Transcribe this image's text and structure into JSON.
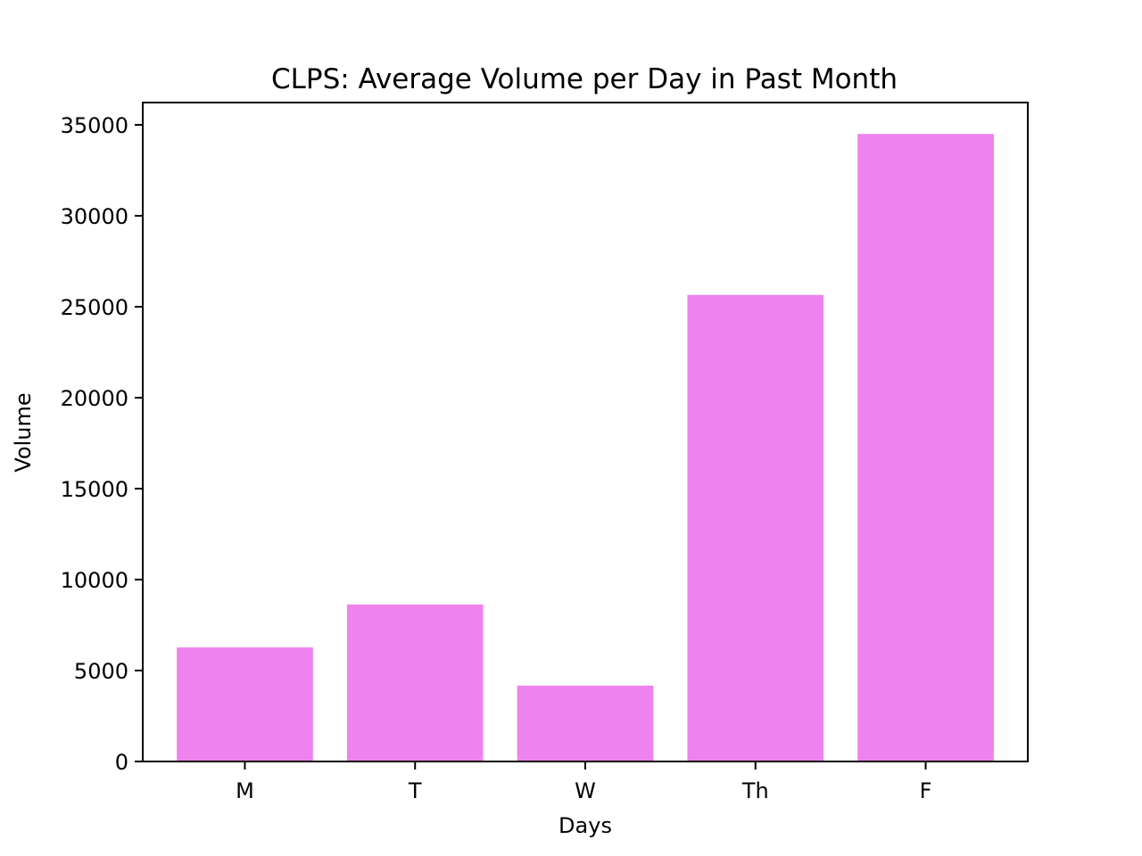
{
  "chart_data": {
    "type": "bar",
    "title": "CLPS: Average Volume per Day in Past Month",
    "xlabel": "Days",
    "ylabel": "Volume",
    "categories": [
      "M",
      "T",
      "W",
      "Th",
      "F"
    ],
    "values": [
      6270,
      8630,
      4170,
      25650,
      34500
    ],
    "ylim": [
      0,
      36225
    ],
    "yticks": [
      0,
      5000,
      10000,
      15000,
      20000,
      25000,
      30000,
      35000
    ],
    "ytick_labels": [
      "0",
      "5000",
      "10000",
      "15000",
      "20000",
      "25000",
      "30000",
      "35000"
    ],
    "bar_color": "#ee82ee",
    "grid": false,
    "legend": "none"
  }
}
